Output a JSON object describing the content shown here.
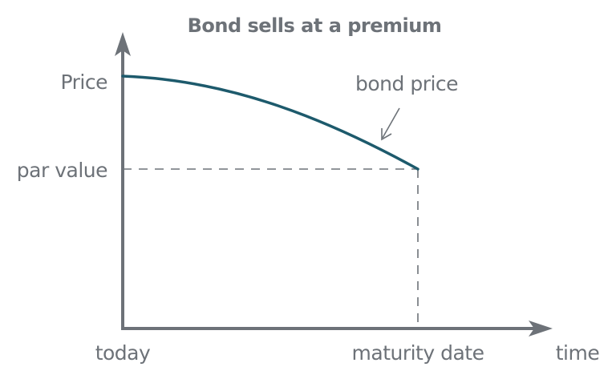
{
  "title": "Bond sells at a premium",
  "y_axis": {
    "top_label": "Price",
    "ref_label": "par value"
  },
  "x_axis": {
    "start_label": "today",
    "ref_label": "maturity date",
    "axis_label": "time"
  },
  "annotation": {
    "text": "bond price"
  },
  "colors": {
    "text": "#6d7278",
    "axis": "#6d7278",
    "curve": "#1d5a6c",
    "guide": "#6d7278",
    "background": "#ffffff"
  },
  "curve_trend": "decreasing from above par toward par value at maturity"
}
